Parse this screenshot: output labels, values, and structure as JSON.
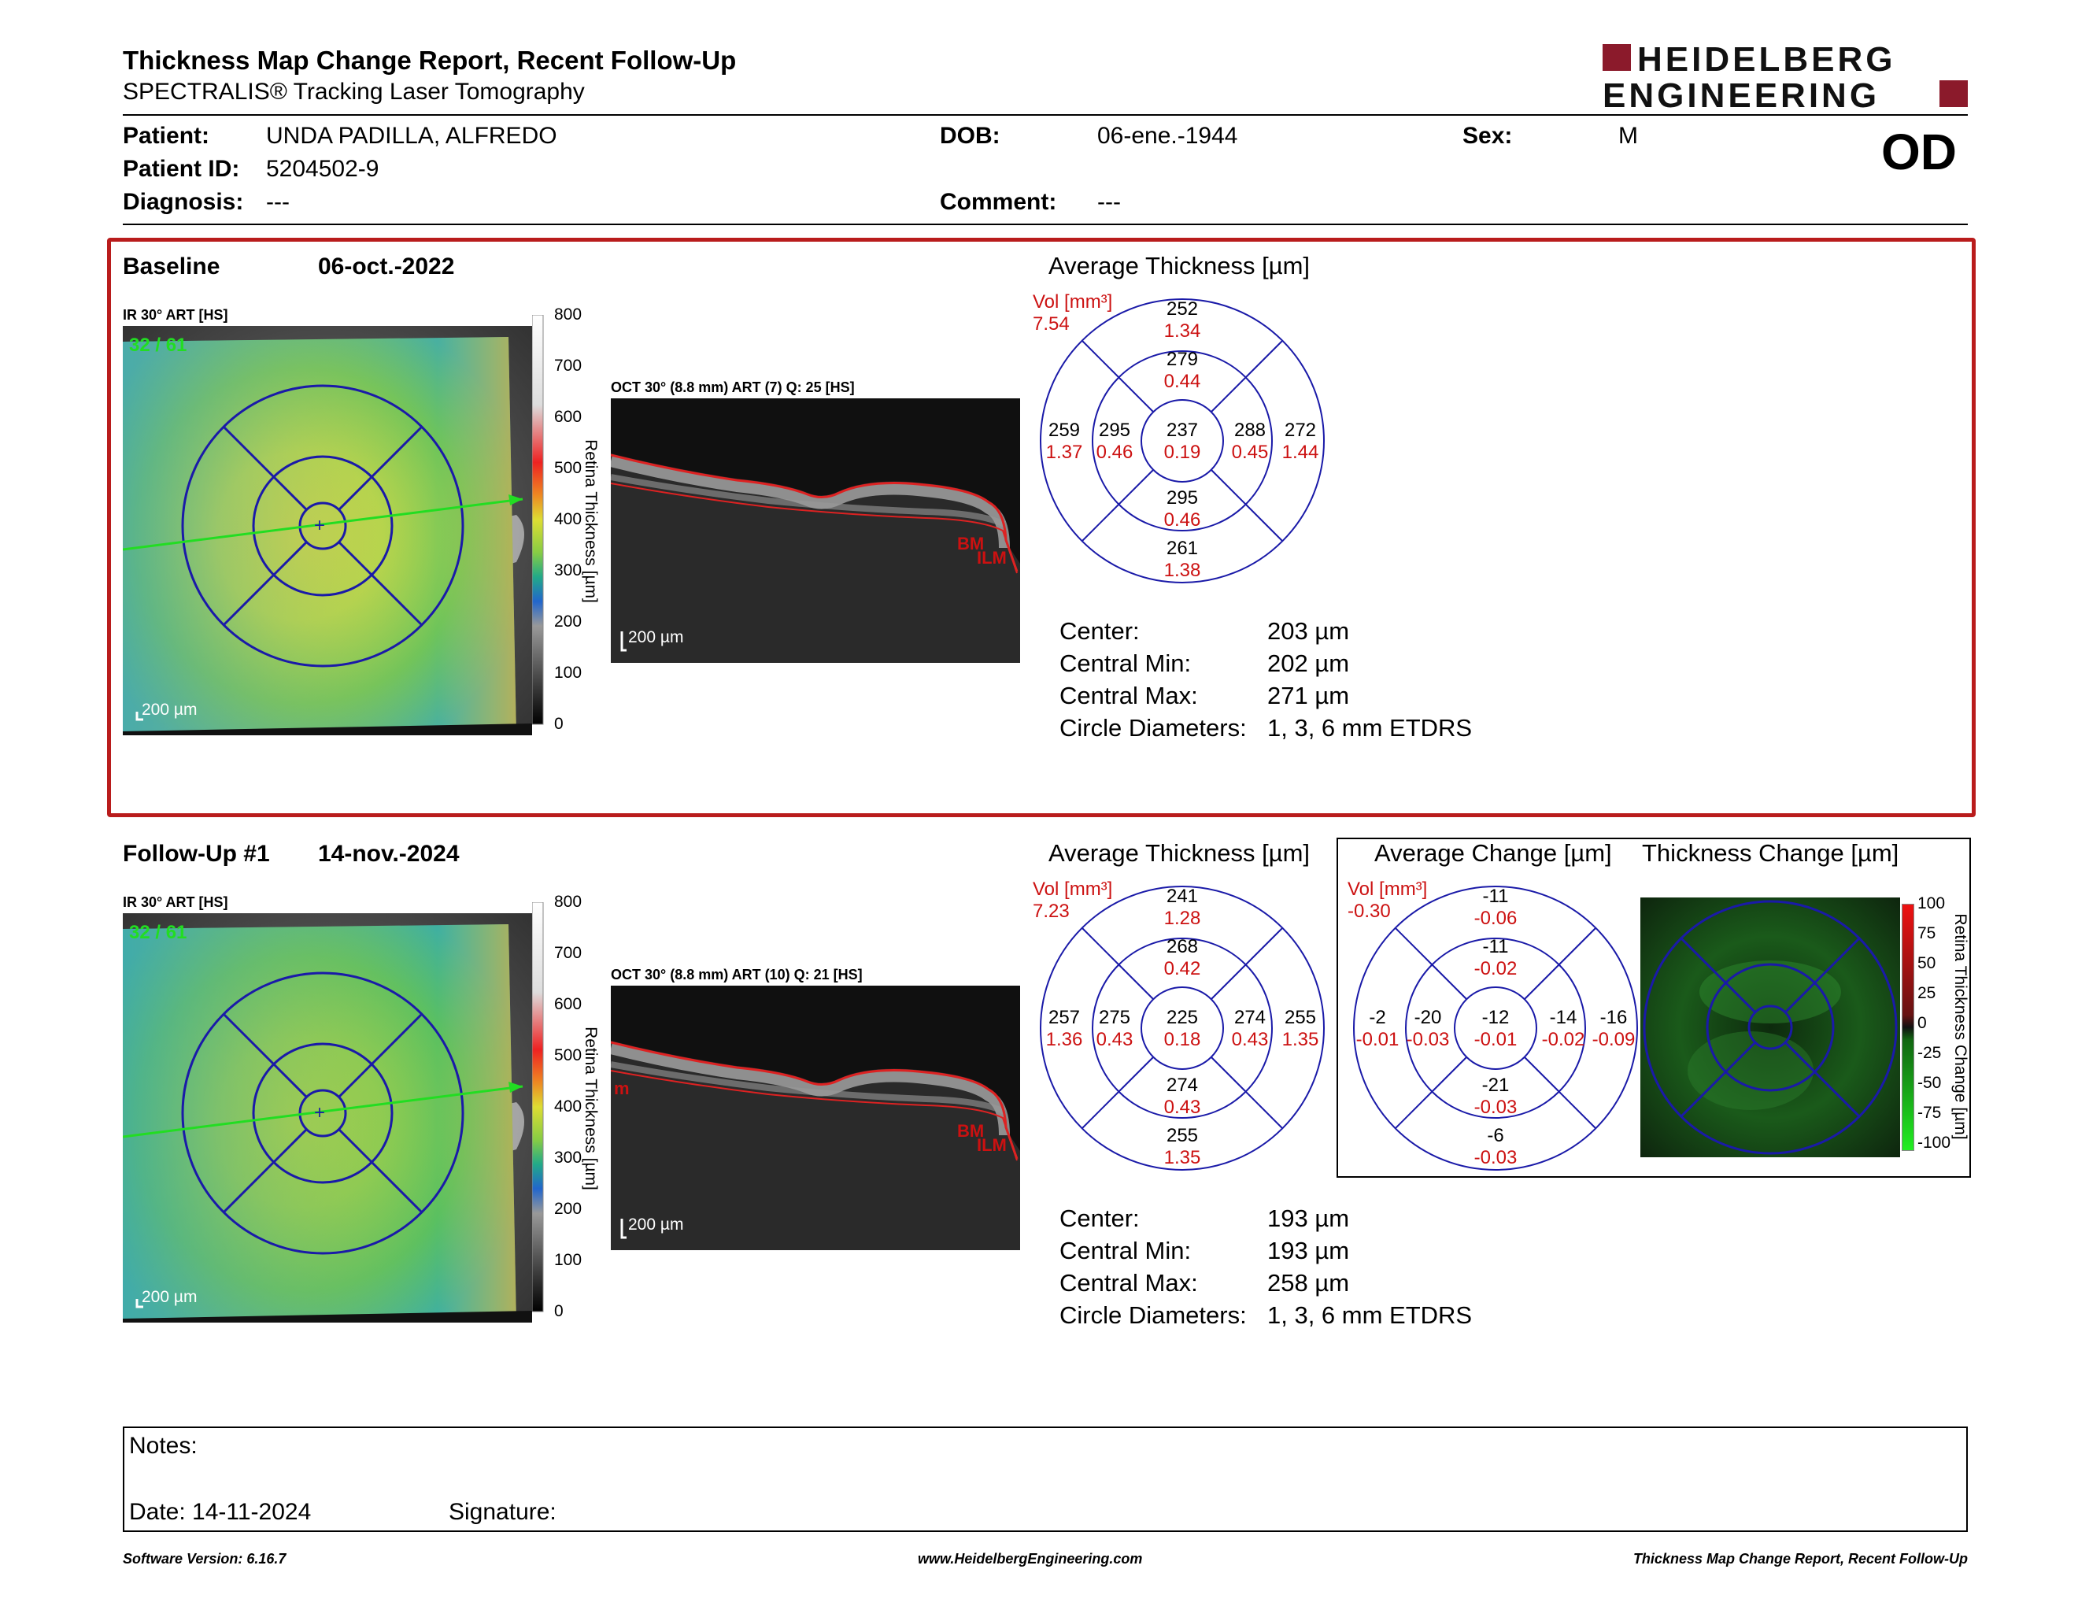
{
  "header": {
    "title": "Thickness Map Change Report, Recent Follow-Up",
    "subtitle": "SPECTRALIS® Tracking Laser Tomography",
    "logo_line1": "HEIDELBERG",
    "logo_line2": "ENGINEERING",
    "eye": "OD"
  },
  "patient": {
    "patient_label": "Patient:",
    "patient_value": "UNDA PADILLA, ALFREDO",
    "id_label": "Patient ID:",
    "id_value": "5204502-9",
    "diagnosis_label": "Diagnosis:",
    "diagnosis_value": "---",
    "dob_label": "DOB:",
    "dob_value": "06-ene.-1944",
    "comment_label": "Comment:",
    "comment_value": "---",
    "sex_label": "Sex:",
    "sex_value": "M"
  },
  "baseline": {
    "label": "Baseline",
    "date": "06-oct.-2022",
    "ir_caption": "IR 30° ART [HS]",
    "ir_counter": "32 / 61",
    "scale_bar": "200 µm",
    "colorbar_ticks": [
      "800",
      "700",
      "600",
      "500",
      "400",
      "300",
      "200",
      "100",
      "0"
    ],
    "colorbar_title": "Retina Thickness [µm]",
    "oct_caption": "OCT 30° (8.8 mm) ART (7) Q: 25 [HS]",
    "oct_scale": "200 µm",
    "oct_bm": "BM",
    "oct_ilm": "ILM",
    "chart_title": "Average Thickness [µm]",
    "vol_label": "Vol [mm³]",
    "vol_value": "7.54",
    "etdrs": {
      "center": {
        "t": "237",
        "v": "0.19"
      },
      "inner_sup": {
        "t": "279",
        "v": "0.44"
      },
      "inner_nas": {
        "t": "288",
        "v": "0.45"
      },
      "inner_inf": {
        "t": "295",
        "v": "0.46"
      },
      "inner_tem": {
        "t": "295",
        "v": "0.46"
      },
      "outer_sup": {
        "t": "252",
        "v": "1.34"
      },
      "outer_nas": {
        "t": "272",
        "v": "1.44"
      },
      "outer_inf": {
        "t": "261",
        "v": "1.38"
      },
      "outer_tem": {
        "t": "259",
        "v": "1.37"
      }
    },
    "stats": [
      {
        "label": "Center:",
        "value": "203 µm"
      },
      {
        "label": "Central Min:",
        "value": "202 µm"
      },
      {
        "label": "Central Max:",
        "value": "271 µm"
      },
      {
        "label": "Circle Diameters:",
        "value": "1, 3, 6 mm ETDRS"
      }
    ]
  },
  "followup": {
    "label": "Follow-Up #1",
    "date": "14-nov.-2024",
    "ir_caption": "IR 30° ART [HS]",
    "ir_counter": "32 / 61",
    "scale_bar": "200 µm",
    "colorbar_ticks": [
      "800",
      "700",
      "600",
      "500",
      "400",
      "300",
      "200",
      "100",
      "0"
    ],
    "colorbar_title": "Retina Thickness [µm]",
    "oct_caption": "OCT 30° (8.8 mm) ART (10) Q: 21 [HS]",
    "oct_scale": "200 µm",
    "oct_m": "m",
    "oct_bm": "BM",
    "oct_ilm": "ILM",
    "chart_title": "Average Thickness [µm]",
    "vol_label": "Vol [mm³]",
    "vol_value": "7.23",
    "etdrs": {
      "center": {
        "t": "225",
        "v": "0.18"
      },
      "inner_sup": {
        "t": "268",
        "v": "0.42"
      },
      "inner_nas": {
        "t": "274",
        "v": "0.43"
      },
      "inner_inf": {
        "t": "274",
        "v": "0.43"
      },
      "inner_tem": {
        "t": "275",
        "v": "0.43"
      },
      "outer_sup": {
        "t": "241",
        "v": "1.28"
      },
      "outer_nas": {
        "t": "255",
        "v": "1.35"
      },
      "outer_inf": {
        "t": "255",
        "v": "1.35"
      },
      "outer_tem": {
        "t": "257",
        "v": "1.36"
      }
    },
    "stats": [
      {
        "label": "Center:",
        "value": "193 µm"
      },
      {
        "label": "Central Min:",
        "value": "193 µm"
      },
      {
        "label": "Central Max:",
        "value": "258 µm"
      },
      {
        "label": "Circle Diameters:",
        "value": "1, 3, 6 mm ETDRS"
      }
    ]
  },
  "change": {
    "title": "Average Change [µm]",
    "vol_label": "Vol [mm³]",
    "vol_value": "-0.30",
    "etdrs": {
      "center": {
        "t": "-12",
        "v": "-0.01"
      },
      "inner_sup": {
        "t": "-11",
        "v": "-0.02"
      },
      "inner_nas": {
        "t": "-14",
        "v": "-0.02"
      },
      "inner_inf": {
        "t": "-21",
        "v": "-0.03"
      },
      "inner_tem": {
        "t": "-20",
        "v": "-0.03"
      },
      "outer_sup": {
        "t": "-11",
        "v": "-0.06"
      },
      "outer_nas": {
        "t": "-16",
        "v": "-0.09"
      },
      "outer_inf": {
        "t": "-6",
        "v": "-0.03"
      },
      "outer_tem": {
        "t": "-2",
        "v": "-0.01"
      }
    },
    "map_title": "Thickness Change [µm]",
    "map_ticks": [
      "100",
      "75",
      "50",
      "25",
      "0",
      "-25",
      "-50",
      "-75",
      "-100"
    ],
    "map_bar_title": "Retina Thickness Change [µm]"
  },
  "notes": {
    "notes_label": "Notes:",
    "date_label": "Date: 14-11-2024",
    "signature_label": "Signature:"
  },
  "footer": {
    "left": "Software Version: 6.16.7",
    "center": "www.HeidelbergEngineering.com",
    "right": "Thickness Map Change Report, Recent Follow-Up"
  },
  "colors": {
    "accent_red": "#b91c1c",
    "grid_blue": "#1a1aa8",
    "value_red": "#cc1111",
    "logo_red": "#8b1a2b"
  }
}
